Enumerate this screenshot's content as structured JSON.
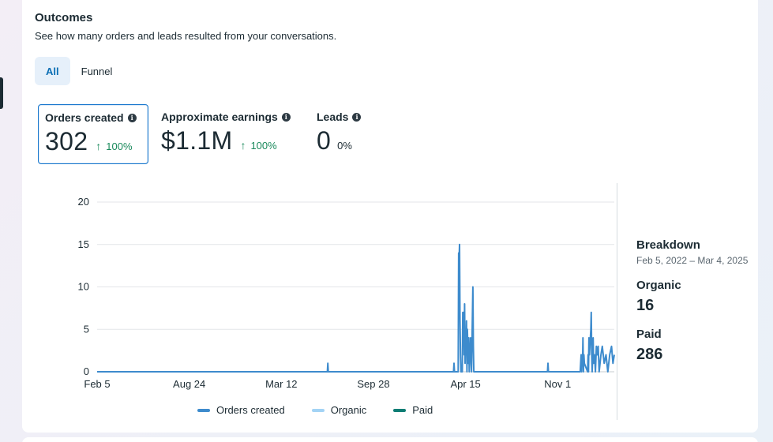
{
  "outcomes": {
    "title": "Outcomes",
    "subtitle": "See how many orders and leads resulted from your conversations."
  },
  "tabs": [
    {
      "label": "All",
      "active": true
    },
    {
      "label": "Funnel",
      "active": false
    }
  ],
  "metrics": [
    {
      "label": "Orders created",
      "value": "302",
      "change": "100%",
      "trend": "up",
      "selected": true
    },
    {
      "label": "Approximate earnings",
      "value": "$1.1M",
      "change": "100%",
      "trend": "up",
      "selected": false
    },
    {
      "label": "Leads",
      "value": "0",
      "change": "0%",
      "trend": "none",
      "selected": false
    }
  ],
  "icons": {
    "info": "info-icon",
    "trend_up": "arrow-up-icon"
  },
  "colors": {
    "accent": "#1877cd",
    "positive": "#1a8a5c",
    "orders": "#3d8bcd",
    "organic": "#a3d3f5",
    "paid": "#0e7d74"
  },
  "breakdown": {
    "title": "Breakdown",
    "range": "Feb 5, 2022 – Mar 4, 2025",
    "organic_label": "Organic",
    "organic_value": "16",
    "paid_label": "Paid",
    "paid_value": "286"
  },
  "legend": [
    {
      "name": "Orders created",
      "color": "#3d8bcd"
    },
    {
      "name": "Organic",
      "color": "#a3d3f5"
    },
    {
      "name": "Paid",
      "color": "#0e7d74"
    }
  ],
  "chart_data": {
    "type": "line",
    "title": "",
    "xlabel": "",
    "ylabel": "",
    "ylim": [
      0,
      20
    ],
    "yticks": [
      0,
      5,
      10,
      15,
      20
    ],
    "xlim": [
      "2022-02-05",
      "2025-03-04"
    ],
    "xticks": [
      {
        "label": "Feb 5",
        "date": "2022-02-05"
      },
      {
        "label": "Aug 24",
        "date": "2022-08-24"
      },
      {
        "label": "Mar 12",
        "date": "2023-03-12"
      },
      {
        "label": "Sep 28",
        "date": "2023-09-28"
      },
      {
        "label": "Apr 15",
        "date": "2024-04-15"
      },
      {
        "label": "Nov 1",
        "date": "2024-11-01"
      }
    ],
    "grid": true,
    "series": [
      {
        "name": "Orders created",
        "points": [
          [
            "2022-02-05",
            0
          ],
          [
            "2023-06-20",
            0
          ],
          [
            "2023-06-21",
            1
          ],
          [
            "2023-06-22",
            0
          ],
          [
            "2024-03-20",
            0
          ],
          [
            "2024-03-21",
            1
          ],
          [
            "2024-03-22",
            0
          ],
          [
            "2024-03-30",
            0
          ],
          [
            "2024-03-31",
            14
          ],
          [
            "2024-04-01",
            13
          ],
          [
            "2024-04-02",
            15
          ],
          [
            "2024-04-03",
            6
          ],
          [
            "2024-04-04",
            2
          ],
          [
            "2024-04-05",
            0
          ],
          [
            "2024-04-08",
            0
          ],
          [
            "2024-04-09",
            7
          ],
          [
            "2024-04-10",
            3
          ],
          [
            "2024-04-11",
            7
          ],
          [
            "2024-04-12",
            2
          ],
          [
            "2024-04-13",
            8
          ],
          [
            "2024-04-14",
            1
          ],
          [
            "2024-04-15",
            4
          ],
          [
            "2024-04-16",
            2
          ],
          [
            "2024-04-17",
            6
          ],
          [
            "2024-04-18",
            0
          ],
          [
            "2024-04-19",
            5
          ],
          [
            "2024-04-20",
            3
          ],
          [
            "2024-04-21",
            1
          ],
          [
            "2024-04-22",
            4
          ],
          [
            "2024-04-23",
            0
          ],
          [
            "2024-04-24",
            3
          ],
          [
            "2024-04-25",
            2
          ],
          [
            "2024-04-26",
            4
          ],
          [
            "2024-04-27",
            1
          ],
          [
            "2024-04-28",
            0
          ],
          [
            "2024-05-01",
            10
          ],
          [
            "2024-05-02",
            3
          ],
          [
            "2024-05-03",
            0
          ],
          [
            "2024-10-10",
            0
          ],
          [
            "2024-10-11",
            1
          ],
          [
            "2024-10-12",
            0
          ],
          [
            "2024-12-20",
            0
          ],
          [
            "2024-12-21",
            1
          ],
          [
            "2024-12-22",
            2
          ],
          [
            "2024-12-23",
            0
          ],
          [
            "2024-12-24",
            2
          ],
          [
            "2024-12-25",
            1
          ],
          [
            "2024-12-26",
            4
          ],
          [
            "2024-12-27",
            0
          ],
          [
            "2024-12-28",
            2
          ],
          [
            "2024-12-29",
            1
          ],
          [
            "2025-01-05",
            0
          ],
          [
            "2025-01-06",
            2
          ],
          [
            "2025-01-07",
            0
          ],
          [
            "2025-01-08",
            4
          ],
          [
            "2025-01-09",
            2
          ],
          [
            "2025-01-10",
            3
          ],
          [
            "2025-01-12",
            5
          ],
          [
            "2025-01-13",
            7
          ],
          [
            "2025-01-14",
            2
          ],
          [
            "2025-01-15",
            0
          ],
          [
            "2025-01-17",
            4
          ],
          [
            "2025-01-18",
            1
          ],
          [
            "2025-01-20",
            2
          ],
          [
            "2025-01-22",
            0
          ],
          [
            "2025-01-24",
            3
          ],
          [
            "2025-01-26",
            2
          ],
          [
            "2025-01-28",
            3
          ],
          [
            "2025-01-30",
            0
          ],
          [
            "2025-02-03",
            2
          ],
          [
            "2025-02-06",
            3
          ],
          [
            "2025-02-10",
            1
          ],
          [
            "2025-02-14",
            2
          ],
          [
            "2025-02-18",
            0
          ],
          [
            "2025-02-22",
            2
          ],
          [
            "2025-02-26",
            3
          ],
          [
            "2025-03-01",
            1
          ],
          [
            "2025-03-04",
            2
          ]
        ]
      },
      {
        "name": "Organic",
        "points": []
      },
      {
        "name": "Paid",
        "points": []
      }
    ],
    "legend_position": "bottom"
  }
}
